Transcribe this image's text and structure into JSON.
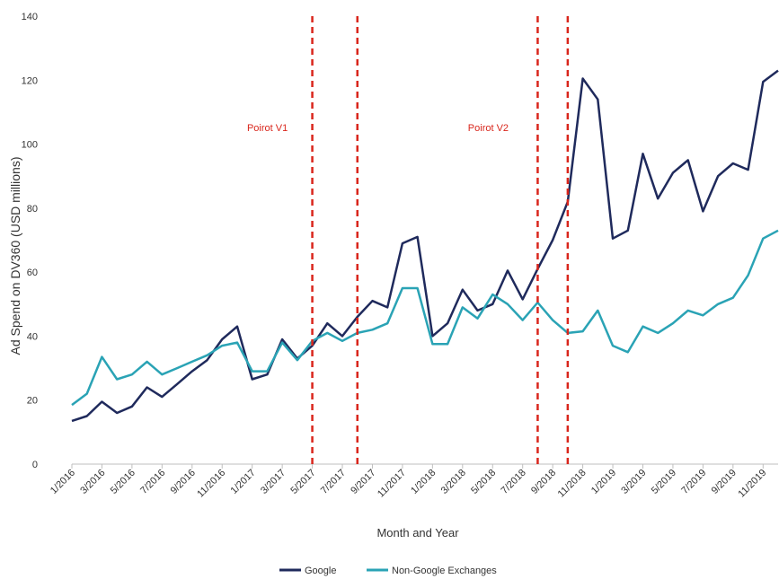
{
  "chart_data": {
    "type": "line",
    "xlabel": "Month and Year",
    "ylabel": "Ad Spend on DV360 (USD millions)",
    "ylim": [
      0,
      140
    ],
    "yticks": [
      0,
      20,
      40,
      60,
      80,
      100,
      120,
      140
    ],
    "x": [
      "1/2016",
      "2/2016",
      "3/2016",
      "4/2016",
      "5/2016",
      "6/2016",
      "7/2016",
      "8/2016",
      "9/2016",
      "10/2016",
      "11/2016",
      "12/2016",
      "1/2017",
      "2/2017",
      "3/2017",
      "4/2017",
      "5/2017",
      "6/2017",
      "7/2017",
      "8/2017",
      "9/2017",
      "10/2017",
      "11/2017",
      "12/2017",
      "1/2018",
      "2/2018",
      "3/2018",
      "4/2018",
      "5/2018",
      "6/2018",
      "7/2018",
      "8/2018",
      "9/2018",
      "10/2018",
      "11/2018",
      "12/2018",
      "1/2019",
      "2/2019",
      "3/2019",
      "4/2019",
      "5/2019",
      "6/2019",
      "7/2019",
      "8/2019",
      "9/2019",
      "10/2019",
      "11/2019",
      "12/2019"
    ],
    "xtick_labels": [
      "1/2016",
      "3/2016",
      "5/2016",
      "7/2016",
      "9/2016",
      "11/2016",
      "1/2017",
      "3/2017",
      "5/2017",
      "7/2017",
      "9/2017",
      "11/2017",
      "1/2018",
      "3/2018",
      "5/2018",
      "7/2018",
      "9/2018",
      "11/2018",
      "1/2019",
      "3/2019",
      "5/2019",
      "7/2019",
      "9/2019",
      "11/2019"
    ],
    "series": [
      {
        "name": "Google",
        "color": "#1f2a5c",
        "values": [
          13.5,
          15,
          19.5,
          16,
          18,
          24,
          21,
          25,
          29,
          32.5,
          39,
          43,
          26.5,
          28,
          39,
          33,
          37,
          44,
          40,
          46,
          51,
          49,
          69,
          71,
          40,
          44,
          54.5,
          48,
          50,
          60.5,
          51.5,
          61,
          70,
          82,
          120.5,
          114,
          70.5,
          73,
          97,
          83,
          91,
          95,
          79,
          90,
          94,
          92,
          119.5,
          123
        ]
      },
      {
        "name": "Non-Google Exchanges",
        "color": "#2aa3b5",
        "values": [
          18.5,
          22,
          33.5,
          26.5,
          28,
          32,
          28,
          30,
          32,
          34,
          37,
          38,
          29,
          29,
          38,
          32.5,
          38.5,
          41,
          38.5,
          41,
          42,
          44,
          55,
          55,
          37.5,
          37.5,
          49,
          45.5,
          53,
          50,
          45,
          50.5,
          45,
          41,
          41.5,
          48,
          37,
          35,
          43,
          41,
          44,
          48,
          46.5,
          50,
          52,
          59,
          70.5,
          73
        ]
      }
    ],
    "annotations": [
      {
        "text": "Poirot V1",
        "start": "5/2017",
        "end": "8/2017"
      },
      {
        "text": "Poirot V2",
        "start": "8/2018",
        "end": "10/2018"
      }
    ],
    "colors": {
      "axis": "#bfbfbf",
      "annotation": "#d9261c",
      "text": "#333333"
    },
    "legend_position": "bottom-center",
    "grid": false
  }
}
